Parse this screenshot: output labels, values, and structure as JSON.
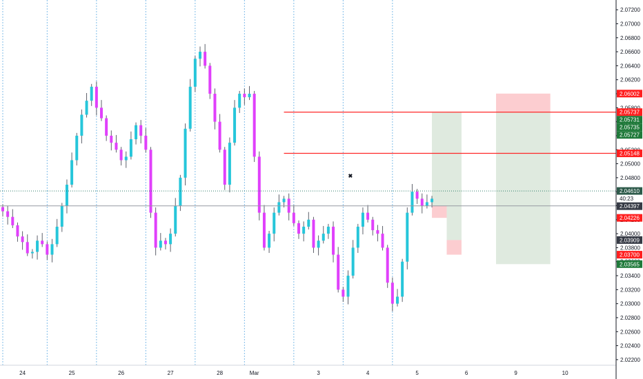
{
  "chart_data": {
    "type": "candlestick",
    "ylim": [
      2.0214,
      2.073
    ],
    "colors": {
      "up": "#26c6da",
      "down": "#e040fb",
      "wick": "#5d606b",
      "vgrid": "#7fbce8",
      "hline": "#ff2424",
      "price_line": "#2e7d6a"
    },
    "y_ticks": [
      "2.07200",
      "2.07000",
      "2.06800",
      "2.06600",
      "2.06400",
      "2.06200",
      "2.06000",
      "2.05800",
      "2.05600",
      "2.05400",
      "2.05200",
      "2.05000",
      "2.04800",
      "2.04600",
      "2.04400",
      "2.04200",
      "2.04000",
      "2.03800",
      "2.03600",
      "2.03400",
      "2.03200",
      "2.03000",
      "2.02800",
      "2.02600",
      "2.02400",
      "2.02200"
    ],
    "x_labels": [
      {
        "label": "24",
        "slot": 4
      },
      {
        "label": "25",
        "slot": 14
      },
      {
        "label": "26",
        "slot": 24
      },
      {
        "label": "27",
        "slot": 34
      },
      {
        "label": "28",
        "slot": 44
      },
      {
        "label": "Mar",
        "slot": 51
      },
      {
        "label": "3",
        "slot": 64
      },
      {
        "label": "4",
        "slot": 74
      },
      {
        "label": "5",
        "slot": 84
      },
      {
        "label": "6",
        "slot": 94
      },
      {
        "label": "9",
        "slot": 104
      },
      {
        "label": "10",
        "slot": 114
      }
    ],
    "separators": [
      0,
      9,
      19,
      29,
      39,
      49,
      59,
      69,
      79
    ],
    "closes": [
      2.0432,
      2.0424,
      2.0412,
      2.0396,
      2.0388,
      2.0372,
      2.0374,
      2.039,
      2.0385,
      2.037,
      2.0385,
      2.041,
      2.044,
      2.047,
      2.0505,
      2.054,
      2.057,
      2.059,
      2.061,
      2.058,
      2.0565,
      2.054,
      2.053,
      2.052,
      2.0505,
      2.051,
      2.0535,
      2.0555,
      2.054,
      2.052,
      2.043,
      2.038,
      2.039,
      2.0385,
      2.04,
      2.044,
      2.048,
      2.055,
      2.061,
      2.065,
      2.066,
      2.064,
      2.06,
      2.056,
      2.052,
      2.047,
      2.053,
      2.058,
      2.06,
      2.0595,
      2.06,
      2.051,
      2.043,
      2.038,
      2.04,
      2.043,
      2.0445,
      2.045,
      2.043,
      2.0415,
      2.04,
      2.041,
      2.042,
      2.038,
      2.039,
      2.04,
      2.041,
      2.037,
      2.032,
      2.031,
      2.034,
      2.038,
      2.041,
      2.043,
      2.042,
      2.0405,
      2.04,
      2.038,
      2.033,
      2.03,
      2.031,
      2.036,
      2.043,
      2.046,
      2.045,
      2.044,
      2.0445,
      2.045
    ],
    "h_lines": [
      {
        "price": 2.05737,
        "label": "2.05737"
      },
      {
        "price": 2.05148,
        "label": "2.05148"
      }
    ],
    "price_tags": [
      {
        "price": 2.06002,
        "label": "2.06002",
        "bg": "#ff1f1f",
        "fg": "#ffffff"
      },
      {
        "price": 2.05737,
        "label": "2.05737",
        "bg": "#ff1f1f",
        "fg": "#ffffff"
      },
      {
        "price": 2.05731,
        "label": "2.05731",
        "bg": "#1f7a3a",
        "fg": "#ffffff"
      },
      {
        "price": 2.05735,
        "label": "2.05735",
        "bg": "#1f7a3a",
        "fg": "#ffffff"
      },
      {
        "price": 2.05727,
        "label": "2.05727",
        "bg": "#1f7a3a",
        "fg": "#ffffff"
      },
      {
        "price": 2.05148,
        "label": "2.05148",
        "bg": "#ff1f1f",
        "fg": "#ffffff"
      },
      {
        "price": 2.0461,
        "label": "2.04610",
        "bg": "#2d5a4a",
        "fg": "#ffffff"
      },
      {
        "price": 2.0461,
        "label": "40:23",
        "bg": "#ffffff",
        "fg": "#131722"
      },
      {
        "price": 2.04397,
        "label": "2.04397",
        "bg": "#363a45",
        "fg": "#ffffff"
      },
      {
        "price": 2.04226,
        "label": "2.04226",
        "bg": "#ff1f1f",
        "fg": "#ffffff"
      },
      {
        "price": 2.03909,
        "label": "2.03909",
        "bg": "#363a45",
        "fg": "#ffffff"
      },
      {
        "price": 2.037,
        "label": "2.03700",
        "bg": "#ff1f1f",
        "fg": "#ffffff"
      },
      {
        "price": 2.03565,
        "label": "2.03565",
        "bg": "#1f7a3a",
        "fg": "#ffffff"
      }
    ],
    "current_price": 2.0461,
    "grey_line_price": 2.04397,
    "positions": [
      {
        "name": "short-position-main",
        "entry": 2.05737,
        "stop": 2.06002,
        "target": 2.03565,
        "from_slot": 100,
        "to_slot": 111
      },
      {
        "name": "long-position-a",
        "entry": 2.04397,
        "stop": 2.04226,
        "target": 2.05731,
        "from_slot": 87,
        "to_slot": 90
      },
      {
        "name": "long-position-b",
        "entry": 2.03909,
        "stop": 2.037,
        "target": 2.05735,
        "from_slot": 90,
        "to_slot": 93
      }
    ],
    "marker_symbol": "✖"
  }
}
